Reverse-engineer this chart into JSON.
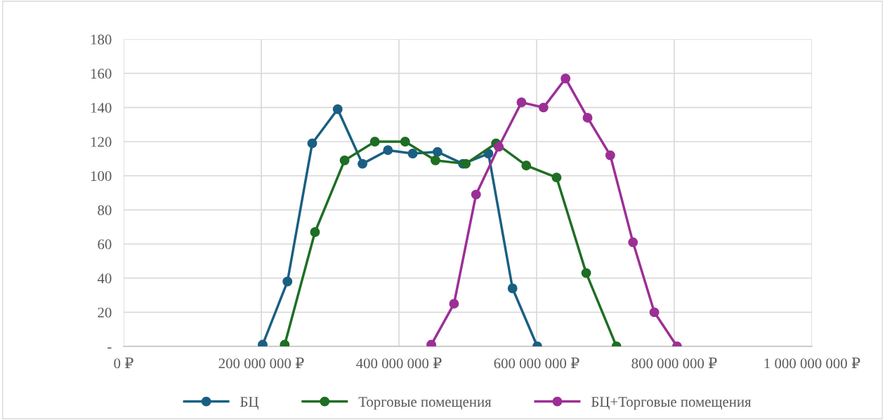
{
  "chart_data": {
    "type": "line",
    "xlim": [
      0,
      1000000000
    ],
    "xticks": [
      {
        "value": 0,
        "label": "0 ₽"
      },
      {
        "value": 200000000,
        "label": "200 000 000 ₽"
      },
      {
        "value": 400000000,
        "label": "400 000 000 ₽"
      },
      {
        "value": 600000000,
        "label": "600 000 000 ₽"
      },
      {
        "value": 800000000,
        "label": "800 000 000 ₽"
      },
      {
        "value": 1000000000,
        "label": "1 000 000 000 ₽"
      }
    ],
    "ylim": [
      0,
      180
    ],
    "yticks": [
      {
        "value": 0,
        "label": "-"
      },
      20,
      40,
      60,
      80,
      100,
      120,
      140,
      160,
      180
    ],
    "grid": true,
    "legend": "bottom",
    "marker": "circle",
    "line_style": "solid",
    "series": [
      {
        "name": "БЦ",
        "color": "#1a5f82",
        "x": [
          202000000,
          238000000,
          274000000,
          311000000,
          347000000,
          384000000,
          420000000,
          456000000,
          493000000,
          530000000,
          565000000,
          601000000
        ],
        "values": [
          1,
          38,
          119,
          139,
          107,
          115,
          113,
          114,
          107,
          113,
          34,
          0
        ]
      },
      {
        "name": "Торговые помещения",
        "color": "#1e6e24",
        "x": [
          234000000,
          278000000,
          321000000,
          365000000,
          409000000,
          453000000,
          497000000,
          541000000,
          585000000,
          629000000,
          672000000,
          716000000
        ],
        "values": [
          1,
          67,
          109,
          120,
          120,
          109,
          107,
          119,
          106,
          99,
          43,
          0
        ]
      },
      {
        "name": "БЦ+Торговые помещения",
        "color": "#9c2f96",
        "x": [
          447000000,
          480000000,
          512000000,
          545000000,
          578000000,
          610000000,
          642000000,
          674000000,
          707000000,
          740000000,
          771000000,
          804000000
        ],
        "values": [
          1,
          25,
          89,
          117,
          143,
          140,
          157,
          134,
          112,
          61,
          20,
          0
        ]
      }
    ]
  }
}
